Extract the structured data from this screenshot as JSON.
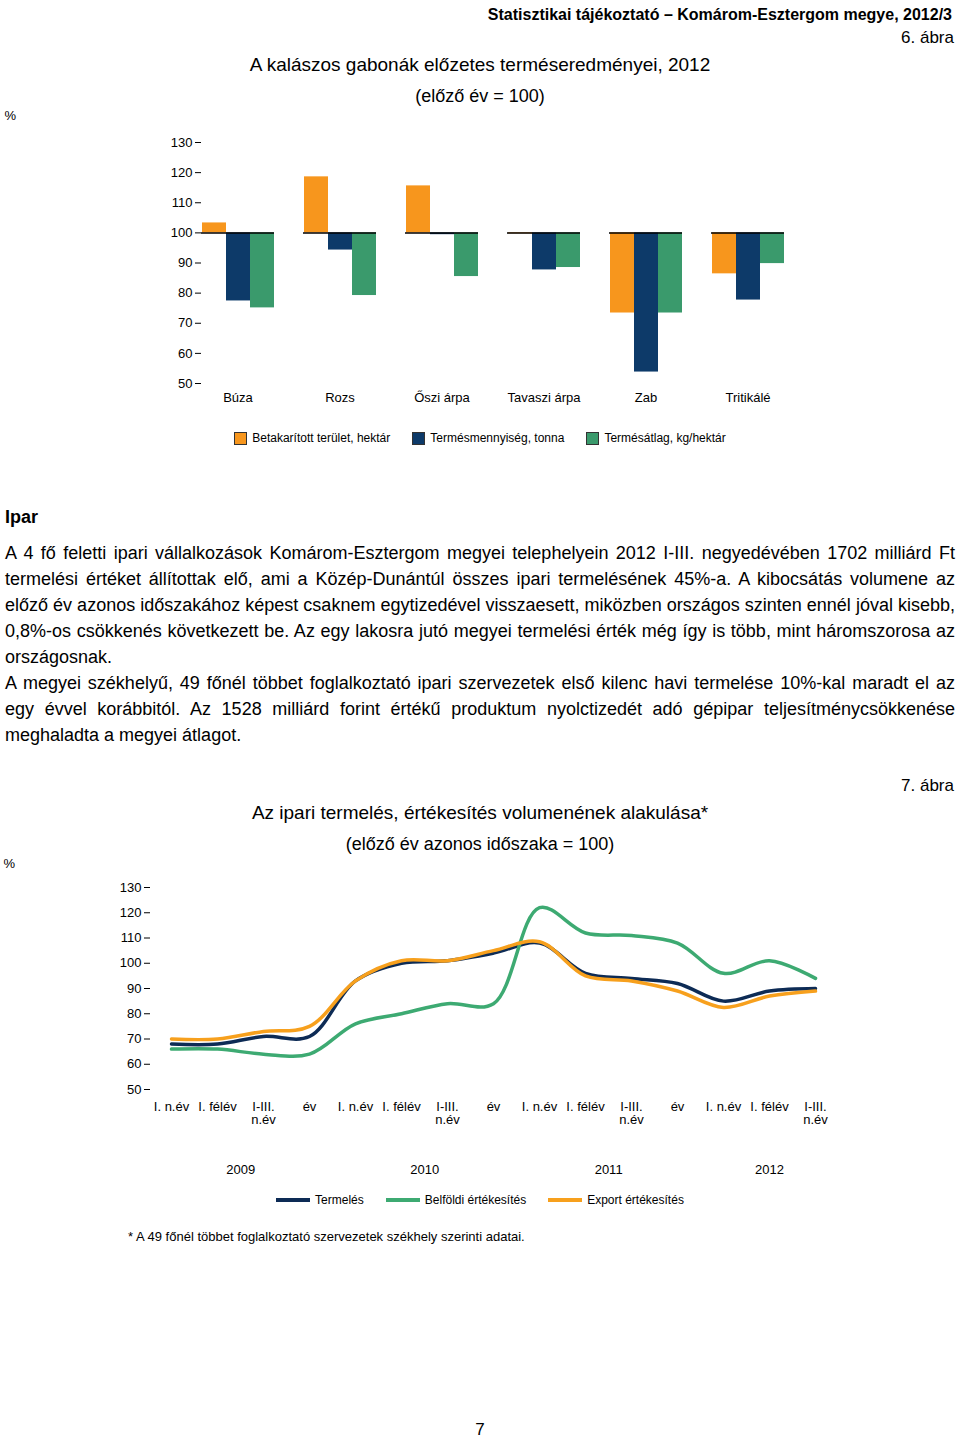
{
  "header": "Statisztikai tájékoztató – Komárom-Esztergom megye, 2012/3",
  "page_number": 7,
  "chart_data": [
    {
      "type": "bar",
      "figure_label": "6. ábra",
      "title": "A kalászos gabonák előzetes terméseredményei, 2012",
      "subtitle": "(előző év = 100)",
      "y_label": "%",
      "categories": [
        "Búza",
        "Rozs",
        "Őszi árpa",
        "Tavaszi árpa",
        "Zab",
        "Tritikálé"
      ],
      "baseline": 100,
      "series": [
        {
          "name": "Betakarított terület, hektár",
          "color": "#f7961d",
          "values": [
            103.3,
            118.6,
            115.6,
            99.7,
            73.4,
            86.4
          ]
        },
        {
          "name": "Termésmennyiség, tonna",
          "color": "#0d3a69",
          "values": [
            77.4,
            94.3,
            99.4,
            87.7,
            53.8,
            77.7
          ]
        },
        {
          "name": "Termésátlag, kg/hektár",
          "color": "#3a9a6c",
          "values": [
            75.1,
            79.2,
            85.5,
            88.5,
            73.4,
            89.8
          ]
        }
      ],
      "ylim": [
        50,
        130
      ],
      "yticks": [
        50,
        60,
        70,
        80,
        90,
        100,
        110,
        120,
        130
      ],
      "legend": "bottom"
    },
    {
      "type": "line",
      "figure_label": "7. ábra",
      "title": "Az ipari termelés, értékesítés volumenének alakulása*",
      "subtitle": "(előző év azonos időszaka = 100)",
      "y_label": "%",
      "categories": [
        "I. n.év",
        "I. félév",
        "I-III.\nn.év",
        "év",
        "I. n.év",
        "I. félév",
        "I-III.\nn.év",
        "év",
        "I. n.év",
        "I. félév",
        "I-III.\nn.év",
        "év",
        "I. n.év",
        "I. félév",
        "I-III.\nn.év"
      ],
      "years": [
        2009,
        2009,
        2009,
        2009,
        2010,
        2010,
        2010,
        2010,
        2011,
        2011,
        2011,
        2011,
        2012,
        2012,
        2012
      ],
      "series": [
        {
          "name": "Termelés",
          "color": "#0d2b55",
          "values": [
            68,
            68,
            71,
            71,
            93,
            100,
            101,
            104,
            108,
            96,
            94,
            92,
            85,
            89,
            90
          ]
        },
        {
          "name": "Belföldi értékesítés",
          "color": "#3daa72",
          "values": [
            66,
            66,
            64,
            64,
            76,
            80,
            84,
            84,
            122,
            112,
            111,
            108,
            96,
            101,
            94
          ]
        },
        {
          "name": "Export értékesítés",
          "color": "#f7a01d",
          "values": [
            70,
            70,
            73,
            75,
            93,
            101,
            101,
            105,
            108.5,
            95,
            93,
            89,
            82.5,
            87,
            89
          ]
        }
      ],
      "ylim": [
        50,
        130
      ],
      "yticks": [
        50,
        60,
        70,
        80,
        90,
        100,
        110,
        120,
        130
      ],
      "legend": "bottom",
      "footnote": "* A 49 főnél többet foglalkoztató szervezetek székhely szerinti adatai."
    }
  ],
  "section": {
    "title": "Ipar",
    "paragraphs": [
      "A 4 fő feletti ipari vállalkozások Komárom-Esztergom megyei telephelyein 2012 I-III. negyedévében 1702 milliárd Ft termelési értéket állítottak elő, ami a Közép-Dunántúl összes ipari termelésének 45%-a. A kibocsátás volumene az előző év azonos időszakához képest csaknem egytizedével visszaesett, miközben országos szinten ennél jóval kisebb, 0,8%-os csökkenés következett be. Az egy lakosra jutó megyei termelési érték még így is több, mint háromszorosa az országosnak.",
      "A megyei székhelyű, 49 főnél többet foglalkoztató ipari szervezetek első kilenc havi termelése 10%-kal maradt el az egy évvel korábbitól. Az 1528 milliárd forint értékű produktum nyolctizedét adó gépipar teljesítménycsökkenése meghaladta a megyei átlagot."
    ]
  }
}
